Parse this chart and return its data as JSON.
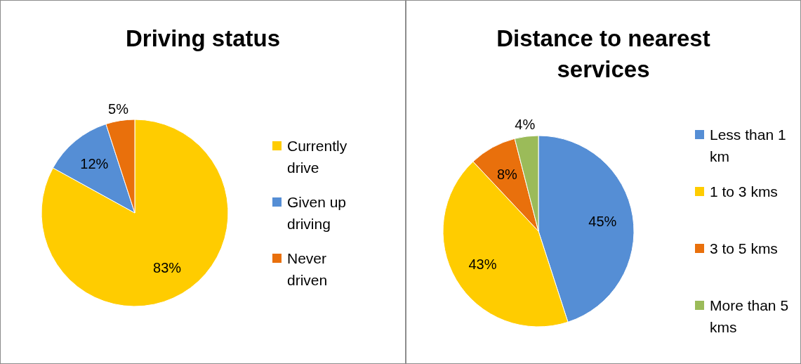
{
  "chart_data": [
    {
      "type": "pie",
      "title": "Driving status",
      "categories": [
        "Currently drive",
        "Given up driving",
        "Never driven"
      ],
      "values": [
        83,
        12,
        5
      ],
      "colors": [
        "#ffcc00",
        "#558ed5",
        "#e9700c"
      ],
      "value_labels": [
        "83%",
        "12%",
        "5%"
      ],
      "legend": "right"
    },
    {
      "type": "pie",
      "title": "Distance to nearest services",
      "categories": [
        "Less than 1 km",
        "1 to 3 kms",
        "3 to 5 kms",
        "More than 5 kms"
      ],
      "values": [
        45,
        43,
        8,
        4
      ],
      "colors": [
        "#558ed5",
        "#ffcc00",
        "#e9700c",
        "#9bbb59"
      ],
      "value_labels": [
        "45%",
        "43%",
        "8%",
        "4%"
      ],
      "legend": "right"
    }
  ]
}
